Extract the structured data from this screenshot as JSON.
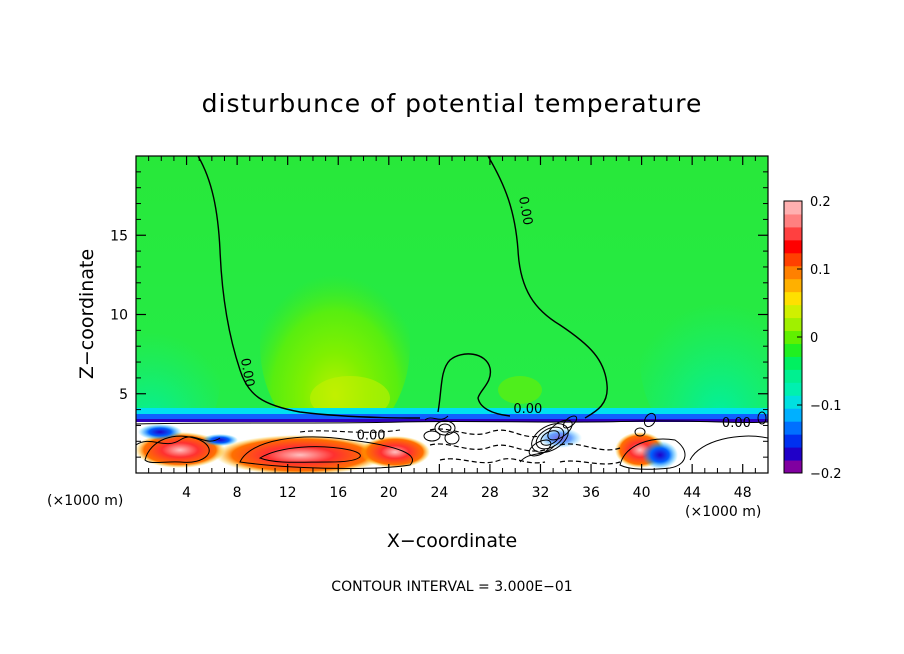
{
  "chart_data": {
    "type": "heatmap",
    "title": "disturbunce of potential temperature",
    "xlabel": "X−coordinate",
    "ylabel": "Z−coordinate",
    "x_unit": "(×1000 m)",
    "z_unit": "(×1000 m)",
    "footer": "CONTOUR INTERVAL = 3.000E−01",
    "xlim": [
      0,
      50
    ],
    "ylim": [
      0,
      20
    ],
    "x_ticks": [
      4,
      8,
      12,
      16,
      20,
      24,
      28,
      32,
      36,
      40,
      44,
      48
    ],
    "y_ticks": [
      5,
      10,
      15
    ],
    "colorbar": {
      "range": [
        -0.2,
        0.2
      ],
      "ticks": [
        {
          "value": 0.2,
          "label": "0.2"
        },
        {
          "value": 0.1,
          "label": "0.1"
        },
        {
          "value": 0,
          "label": "0"
        },
        {
          "value": -0.1,
          "label": "−0.1"
        },
        {
          "value": -0.2,
          "label": "−0.2"
        }
      ],
      "colors": [
        "#8000a0",
        "#2000c8",
        "#0030f0",
        "#0070ff",
        "#00b0ff",
        "#00e0e0",
        "#00f0b0",
        "#00f090",
        "#00f060",
        "#20f020",
        "#60f000",
        "#a0f000",
        "#d0f000",
        "#ffe000",
        "#ffb000",
        "#ff8000",
        "#ff4000",
        "#ff0000",
        "#ff4040",
        "#ff8080",
        "#ffb0b0"
      ]
    },
    "contour_labels": [
      {
        "text": "0.00",
        "x": 8.5,
        "y": 6.3,
        "rotate": 80
      },
      {
        "text": "0.00",
        "x": 30.5,
        "y": 16.5,
        "rotate": 80
      },
      {
        "text": "0.00",
        "x": 31.0,
        "y": 3.8,
        "rotate": 0
      },
      {
        "text": "0.00",
        "x": 18.6,
        "y": 2.1,
        "rotate": 0
      },
      {
        "text": "0.00",
        "x": 47.5,
        "y": 2.9,
        "rotate": 0
      }
    ]
  }
}
